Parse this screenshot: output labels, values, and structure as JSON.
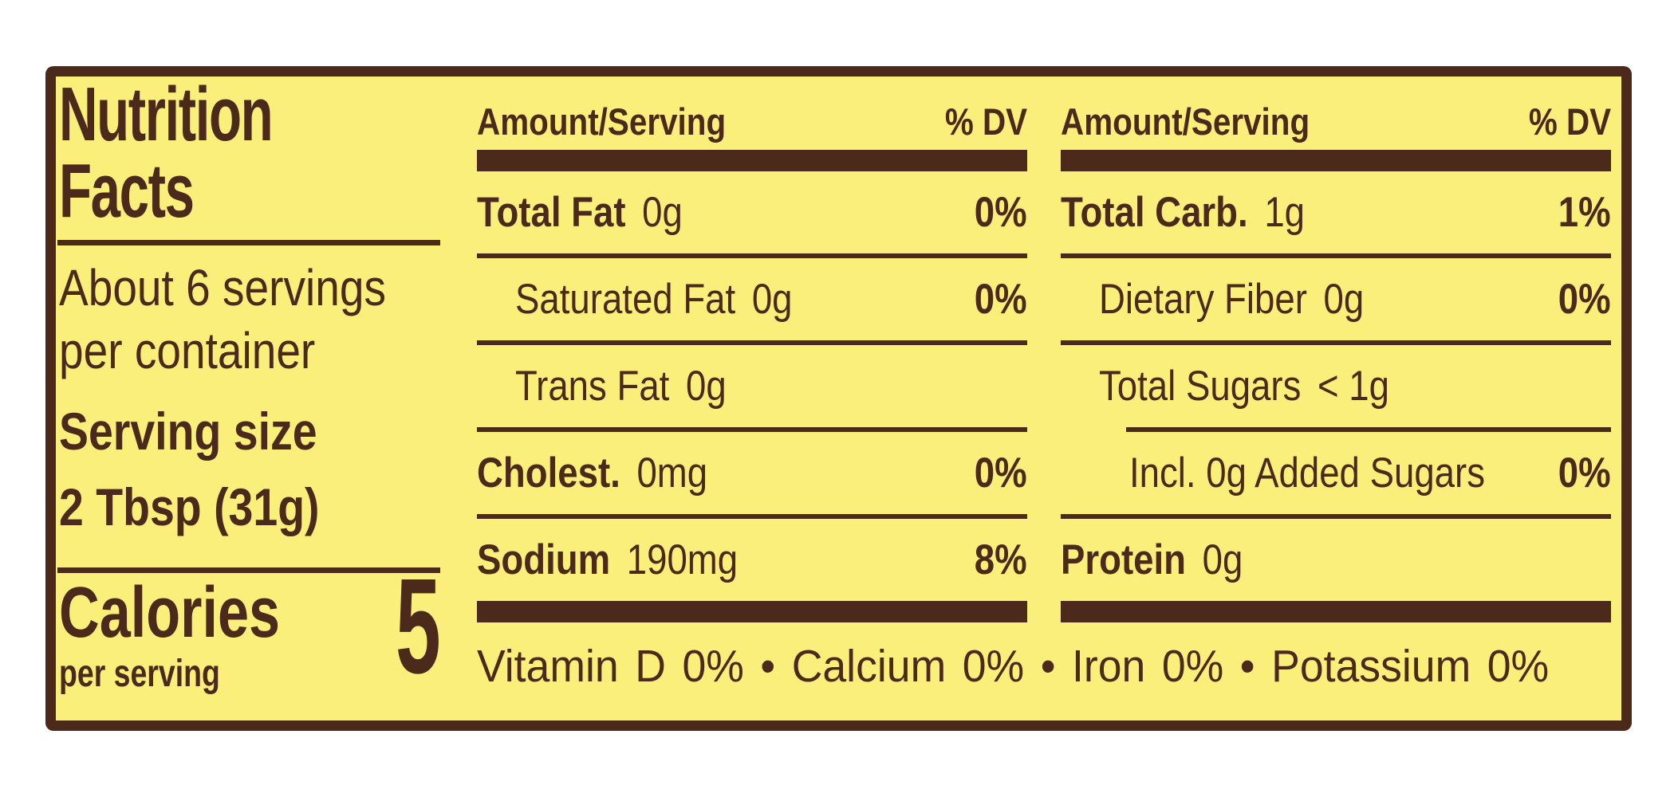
{
  "colors": {
    "label_bg": "#FAEF7A",
    "ink": "#4B2A1B"
  },
  "left_panel": {
    "title_line1": "Nutrition",
    "title_line2": "Facts",
    "servings_line1": "About 6 servings",
    "servings_line2": "per container",
    "serving_size_label": "Serving size",
    "serving_size_value": "2 Tbsp (31g)",
    "calories_label": "Calories",
    "calories_sublabel": "per serving",
    "calories_value": "5"
  },
  "columns": [
    {
      "header_amount": "Amount/Serving",
      "header_dv": "% DV",
      "rows": [
        {
          "name": "Total Fat",
          "amount": "0g",
          "dv": "0%"
        },
        {
          "name": "Saturated Fat",
          "amount": "0g",
          "dv": "0%"
        },
        {
          "name": "Trans Fat",
          "amount": "0g"
        },
        {
          "name": "Cholest.",
          "amount": "0mg",
          "dv": "0%"
        },
        {
          "name": "Sodium",
          "amount": "190mg",
          "dv": "8%"
        }
      ]
    },
    {
      "header_amount": "Amount/Serving",
      "header_dv": "% DV",
      "rows": [
        {
          "name": "Total Carb.",
          "amount": "1g",
          "dv": "1%"
        },
        {
          "name": "Dietary Fiber",
          "amount": "0g",
          "dv": "0%"
        },
        {
          "name": "Total Sugars",
          "amount": "< 1g"
        },
        {
          "name": "Incl. 0g Added Sugars",
          "amount": "",
          "dv": "0%"
        },
        {
          "name": "Protein",
          "amount": "0g"
        }
      ]
    }
  ],
  "footer": {
    "vitamins": "Vitamin D  0%  •  Calcium  0%  •  Iron  0%  •  Potassium  0%"
  }
}
